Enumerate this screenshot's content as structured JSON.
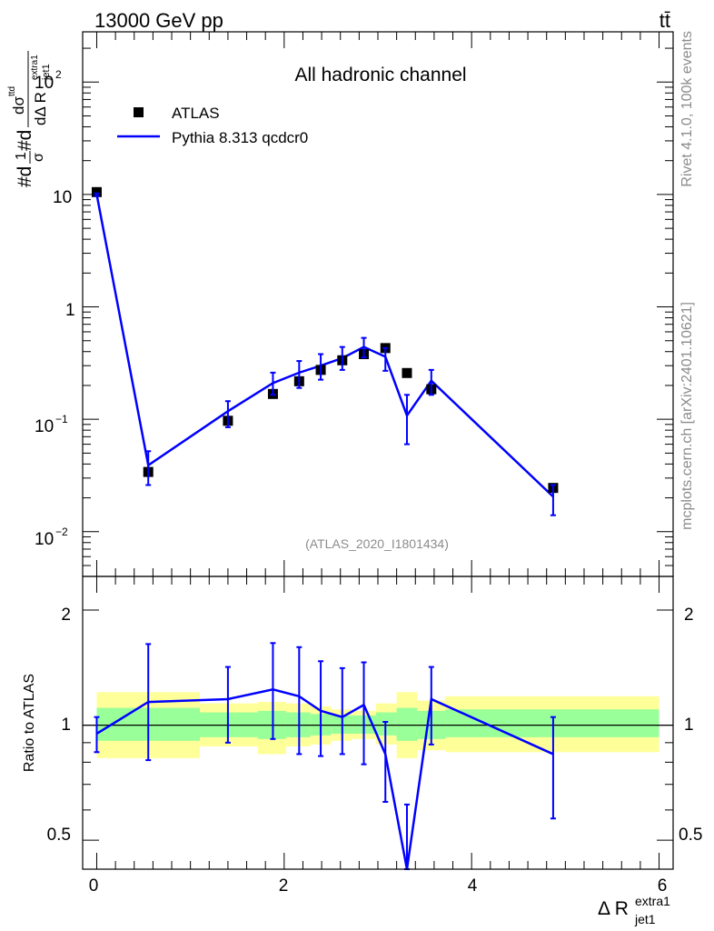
{
  "header": {
    "energy_label": "13000 GeV pp",
    "process_label": "tt̄"
  },
  "side_labels": {
    "rivet": "Rivet 4.1.0,  100k events",
    "mcplots": "mcplots.cern.ch [arXiv:2401.10621]"
  },
  "colors": {
    "mc": "#0000ff",
    "data": "#000000",
    "band_inner": "#99ff99",
    "band_outer": "#ffff99"
  },
  "chart_data": [
    {
      "type": "scatter",
      "title": "All hadronic channel",
      "analysis_id": "(ATLAS_2020_I1801434)",
      "ylabel_parts": {
        "lead": "#d",
        "frac_num": "1",
        "frac_den": "σ",
        "mid": "#d",
        "inner_num": "dσ",
        "inner_num_sup": "ttd",
        "inner_den": "dΔ R",
        "inner_den_sub": "jet1",
        "inner_den_sup": "extra1"
      },
      "yscale": "log",
      "ylim": [
        0.004,
        280
      ],
      "xlim": [
        -0.15,
        6.15
      ],
      "y_tick_labels": [
        {
          "value": 0.01,
          "base": "10",
          "exp": "−2"
        },
        {
          "value": 0.1,
          "base": "10",
          "exp": "−1"
        },
        {
          "value": 1,
          "base": "1",
          "exp": ""
        },
        {
          "value": 10,
          "base": "10",
          "exp": ""
        },
        {
          "value": 100,
          "base": "10",
          "exp": "2"
        }
      ],
      "legend": {
        "position": "top-left",
        "entries": [
          "ATLAS",
          "Pythia 8.313 qcdcr0"
        ]
      },
      "series": [
        {
          "name": "ATLAS",
          "x": [
            0.0,
            0.55,
            1.4,
            1.88,
            2.16,
            2.39,
            2.62,
            2.85,
            3.08,
            3.31,
            3.57,
            4.87
          ],
          "y": [
            10.5,
            0.034,
            0.097,
            0.168,
            0.218,
            0.275,
            0.335,
            0.38,
            0.43,
            0.258,
            0.185,
            0.0245
          ]
        },
        {
          "name": "Pythia 8.313 qcdcr0",
          "x": [
            0.0,
            0.55,
            1.4,
            1.88,
            2.16,
            2.39,
            2.62,
            2.85,
            3.08,
            3.31,
            3.57,
            4.87
          ],
          "y": [
            10.0,
            0.039,
            0.118,
            0.21,
            0.26,
            0.3,
            0.35,
            0.44,
            0.36,
            0.108,
            0.22,
            0.0205
          ],
          "err_up": [
            10.2,
            0.052,
            0.145,
            0.26,
            0.33,
            0.38,
            0.44,
            0.53,
            0.43,
            0.165,
            0.275,
            0.026
          ],
          "err_down": [
            9.7,
            0.026,
            0.085,
            0.165,
            0.19,
            0.225,
            0.275,
            0.355,
            0.27,
            0.06,
            0.165,
            0.014
          ]
        }
      ]
    },
    {
      "type": "line",
      "ylabel": "Ratio to ATLAS",
      "xlabel_parts": {
        "base": "Δ R",
        "sub": "jet1",
        "sup": "extra1"
      },
      "yscale": "log",
      "ylim": [
        0.42,
        2.45
      ],
      "xlim": [
        -0.15,
        6.15
      ],
      "x_ticks": [
        0,
        2,
        4,
        6
      ],
      "x_tick_labels": [
        "0",
        "2",
        "4",
        "6"
      ],
      "y_ticks": [
        0.5,
        1,
        2
      ],
      "y_tick_labels": [
        "0.5",
        "1",
        "2"
      ],
      "bands": [
        {
          "x0": 0.0,
          "x1": 1.1,
          "inner": [
            0.91,
            1.11
          ],
          "outer": [
            0.82,
            1.22
          ]
        },
        {
          "x0": 1.1,
          "x1": 1.72,
          "inner": [
            0.93,
            1.08
          ],
          "outer": [
            0.88,
            1.14
          ]
        },
        {
          "x0": 1.72,
          "x1": 2.02,
          "inner": [
            0.92,
            1.09
          ],
          "outer": [
            0.84,
            1.15
          ]
        },
        {
          "x0": 2.02,
          "x1": 2.28,
          "inner": [
            0.93,
            1.08
          ],
          "outer": [
            0.88,
            1.14
          ]
        },
        {
          "x0": 2.28,
          "x1": 2.5,
          "inner": [
            0.94,
            1.07
          ],
          "outer": [
            0.89,
            1.12
          ]
        },
        {
          "x0": 2.5,
          "x1": 2.72,
          "inner": [
            0.95,
            1.06
          ],
          "outer": [
            0.91,
            1.1
          ]
        },
        {
          "x0": 2.72,
          "x1": 2.98,
          "inner": [
            0.95,
            1.06
          ],
          "outer": [
            0.92,
            1.09
          ]
        },
        {
          "x0": 2.98,
          "x1": 3.2,
          "inner": [
            0.94,
            1.08
          ],
          "outer": [
            0.89,
            1.14
          ]
        },
        {
          "x0": 3.2,
          "x1": 3.42,
          "inner": [
            0.91,
            1.11
          ],
          "outer": [
            0.82,
            1.22
          ]
        },
        {
          "x0": 3.42,
          "x1": 3.72,
          "inner": [
            0.92,
            1.09
          ],
          "outer": [
            0.86,
            1.16
          ]
        },
        {
          "x0": 3.72,
          "x1": 6.0,
          "inner": [
            0.93,
            1.1
          ],
          "outer": [
            0.85,
            1.19
          ]
        }
      ],
      "series": [
        {
          "name": "Pythia 8.313 qcdcr0 / ATLAS",
          "x": [
            0.0,
            0.55,
            1.4,
            1.88,
            2.16,
            2.39,
            2.62,
            2.85,
            3.08,
            3.31,
            3.57,
            4.87
          ],
          "y": [
            0.95,
            1.15,
            1.17,
            1.24,
            1.19,
            1.09,
            1.05,
            1.13,
            0.84,
            0.42,
            1.17,
            0.84
          ],
          "err_up": [
            1.05,
            1.63,
            1.42,
            1.64,
            1.6,
            1.47,
            1.41,
            1.46,
            1.02,
            0.62,
            1.42,
            1.05
          ],
          "err_down": [
            0.85,
            0.81,
            0.9,
            0.92,
            0.84,
            0.83,
            0.84,
            0.79,
            0.63,
            0.42,
            0.89,
            0.57
          ]
        }
      ]
    }
  ]
}
